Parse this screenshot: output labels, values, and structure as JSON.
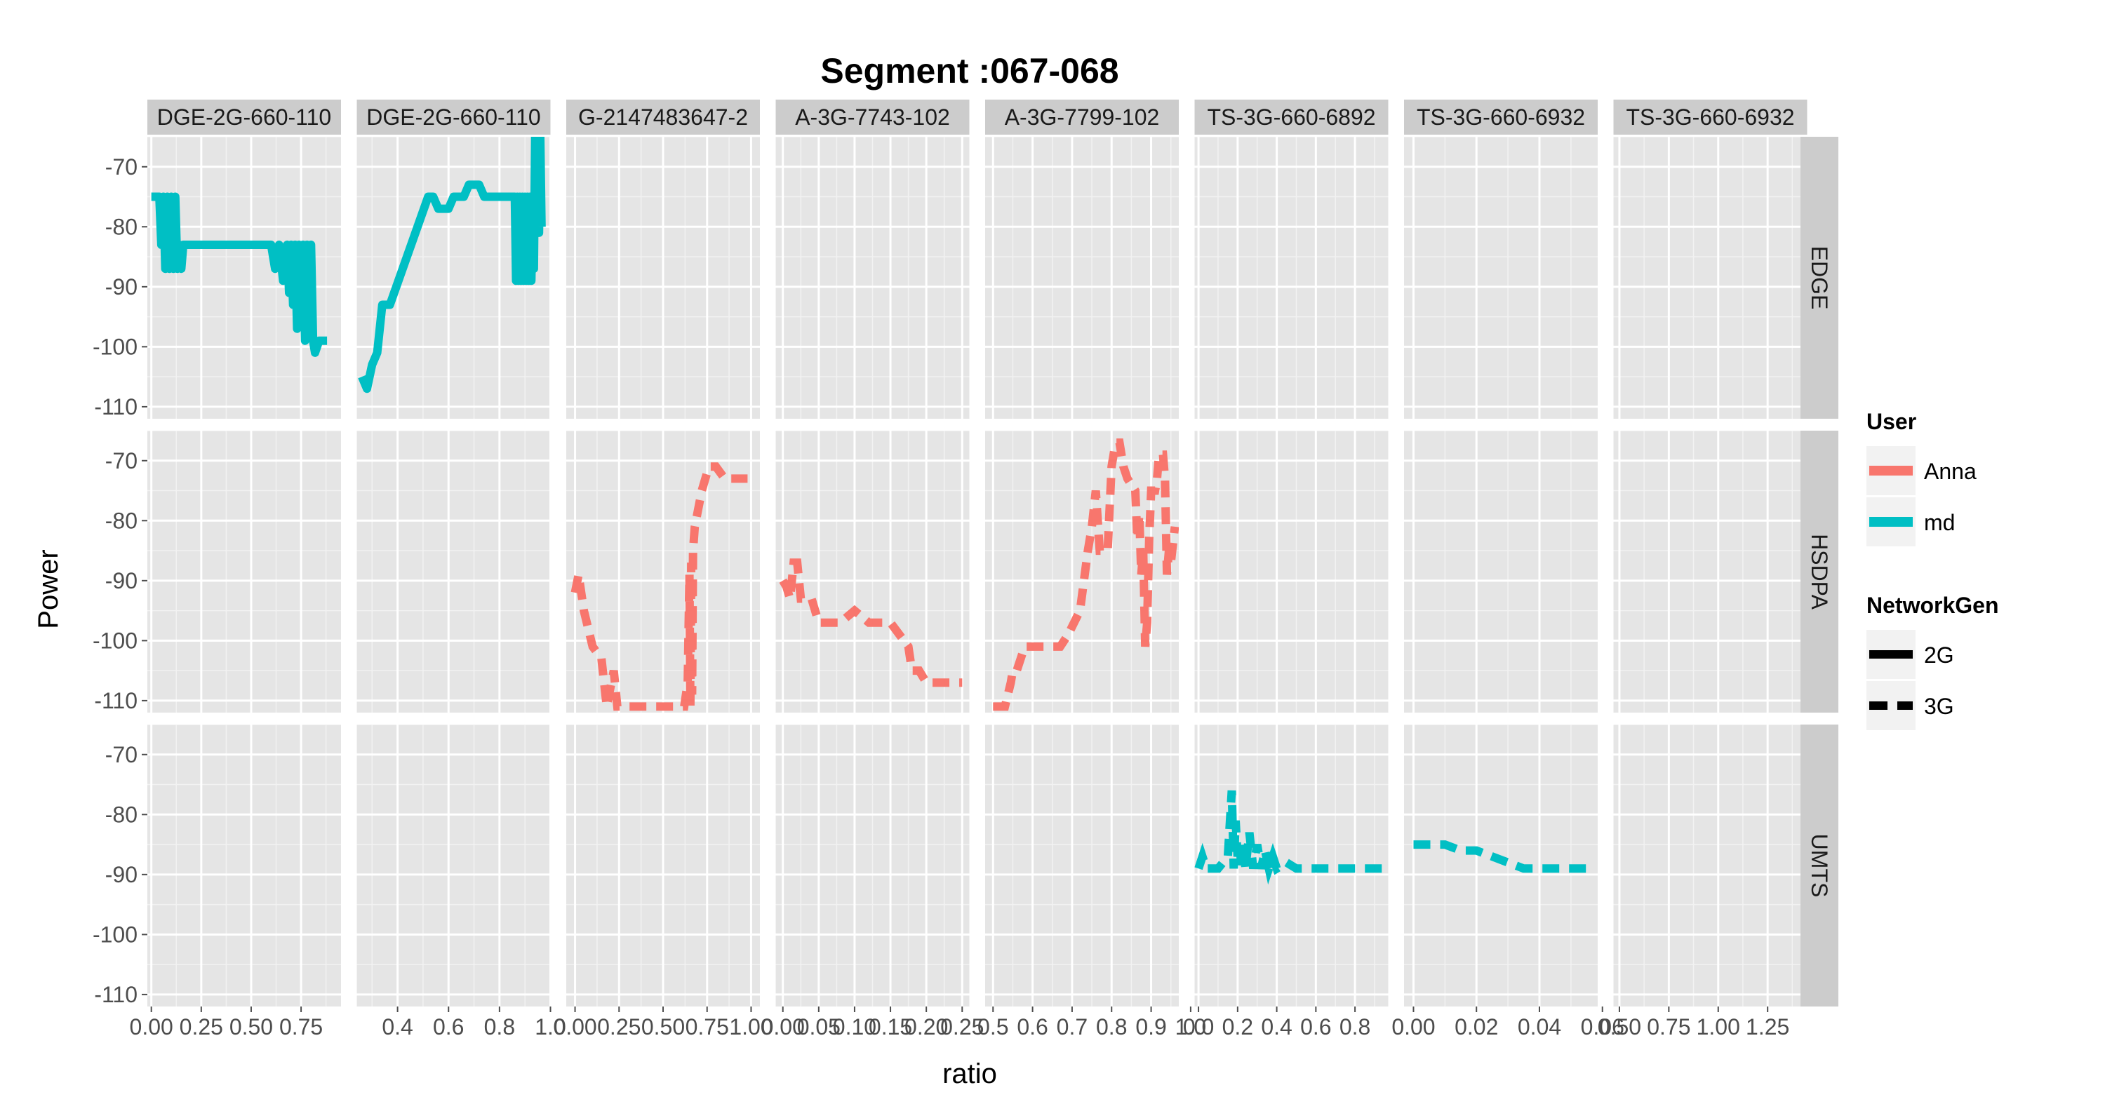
{
  "chart_data": {
    "type": "line",
    "title": "Segment :067-068",
    "xlabel": "ratio",
    "ylabel": "Power",
    "grid": true,
    "legend_placement": "right",
    "colors": {
      "Anna": "#F8766D",
      "md": "#00BFC4"
    },
    "linetypes": {
      "2G": "solid",
      "3G": "dashed"
    },
    "legend": {
      "user_title": "User",
      "user_items": [
        "Anna",
        "md"
      ],
      "gen_title": "NetworkGen",
      "gen_items": [
        "2G",
        "3G"
      ]
    },
    "rows": [
      "EDGE",
      "HSDPA",
      "UMTS"
    ],
    "ylim": [
      -112,
      -65
    ],
    "yticks": [
      -70,
      -80,
      -90,
      -100,
      -110
    ],
    "columns": [
      {
        "label": "DGE-2G-660-110",
        "xlim": [
          -0.02,
          0.95
        ],
        "xticks": [
          0.0,
          0.25,
          0.5,
          0.75
        ],
        "xtick_labels": [
          "0.00",
          "0.25",
          "0.50",
          "0.75"
        ]
      },
      {
        "label": "DGE-2G-660-110",
        "xlim": [
          0.24,
          1.0
        ],
        "xticks": [
          0.4,
          0.6,
          0.8,
          1.0
        ],
        "xtick_labels": [
          "0.4",
          "0.6",
          "0.8",
          "1.0"
        ]
      },
      {
        "label": "G-2147483647-2",
        "xlim": [
          -0.05,
          1.05
        ],
        "xticks": [
          0.0,
          0.25,
          0.5,
          0.75,
          1.0
        ],
        "xtick_labels": [
          "0.00",
          "0.25",
          "0.50",
          "0.75",
          "1.00"
        ]
      },
      {
        "label": "A-3G-7743-102",
        "xlim": [
          -0.01,
          0.26
        ],
        "xticks": [
          0.0,
          0.05,
          0.1,
          0.15,
          0.2,
          0.25
        ],
        "xtick_labels": [
          "0.00",
          "0.05",
          "0.10",
          "0.15",
          "0.20",
          "0.25"
        ]
      },
      {
        "label": "A-3G-7799-102",
        "xlim": [
          0.48,
          0.97
        ],
        "xticks": [
          0.5,
          0.6,
          0.7,
          0.8,
          0.9,
          1.0
        ],
        "xtick_labels": [
          "0.5",
          "0.6",
          "0.7",
          "0.8",
          "0.9",
          "1.0"
        ]
      },
      {
        "label": "TS-3G-660-6892",
        "xlim": [
          -0.02,
          0.97
        ],
        "xticks": [
          0.0,
          0.2,
          0.4,
          0.6,
          0.8
        ],
        "xtick_labels": [
          "0.0",
          "0.2",
          "0.4",
          "0.6",
          "0.8"
        ]
      },
      {
        "label": "TS-3G-660-6932",
        "xlim": [
          -0.003,
          0.0585
        ],
        "xticks": [
          0.0,
          0.02,
          0.04,
          0.06
        ],
        "xtick_labels": [
          "0.00",
          "0.02",
          "0.04",
          "0.06"
        ]
      },
      {
        "label": "TS-3G-660-6932",
        "xlim": [
          0.47,
          1.45
        ],
        "xticks": [
          0.5,
          0.75,
          1.0,
          1.25
        ],
        "xtick_labels": [
          "0.50",
          "0.75",
          "1.00",
          "1.25"
        ]
      }
    ],
    "series": [
      {
        "user": "md",
        "gen": "2G",
        "row": 0,
        "col": 0,
        "points": [
          [
            0.0,
            -75
          ],
          [
            0.04,
            -75
          ],
          [
            0.05,
            -83
          ],
          [
            0.06,
            -75
          ],
          [
            0.07,
            -87
          ],
          [
            0.08,
            -75
          ],
          [
            0.09,
            -87
          ],
          [
            0.1,
            -75
          ],
          [
            0.11,
            -87
          ],
          [
            0.12,
            -75
          ],
          [
            0.13,
            -87
          ],
          [
            0.14,
            -83
          ],
          [
            0.15,
            -87
          ],
          [
            0.16,
            -83
          ],
          [
            0.6,
            -83
          ],
          [
            0.62,
            -87
          ],
          [
            0.64,
            -83
          ],
          [
            0.66,
            -89
          ],
          [
            0.68,
            -83
          ],
          [
            0.69,
            -91
          ],
          [
            0.7,
            -83
          ],
          [
            0.71,
            -93
          ],
          [
            0.72,
            -83
          ],
          [
            0.73,
            -97
          ],
          [
            0.74,
            -83
          ],
          [
            0.75,
            -93
          ],
          [
            0.76,
            -83
          ],
          [
            0.77,
            -99
          ],
          [
            0.78,
            -83
          ],
          [
            0.79,
            -97
          ],
          [
            0.8,
            -83
          ],
          [
            0.81,
            -99
          ],
          [
            0.82,
            -101
          ],
          [
            0.84,
            -99
          ],
          [
            0.88,
            -99
          ]
        ]
      },
      {
        "user": "md",
        "gen": "2G",
        "row": 0,
        "col": 1,
        "points": [
          [
            0.26,
            -105
          ],
          [
            0.28,
            -107
          ],
          [
            0.3,
            -103
          ],
          [
            0.32,
            -101
          ],
          [
            0.34,
            -93
          ],
          [
            0.37,
            -93
          ],
          [
            0.52,
            -75
          ],
          [
            0.54,
            -75
          ],
          [
            0.56,
            -77
          ],
          [
            0.6,
            -77
          ],
          [
            0.62,
            -75
          ],
          [
            0.66,
            -75
          ],
          [
            0.68,
            -73
          ],
          [
            0.72,
            -73
          ],
          [
            0.74,
            -75
          ],
          [
            0.86,
            -75
          ],
          [
            0.865,
            -89
          ],
          [
            0.87,
            -75
          ],
          [
            0.875,
            -89
          ],
          [
            0.88,
            -75
          ],
          [
            0.885,
            -89
          ],
          [
            0.89,
            -75
          ],
          [
            0.895,
            -89
          ],
          [
            0.9,
            -75
          ],
          [
            0.905,
            -89
          ],
          [
            0.91,
            -75
          ],
          [
            0.915,
            -89
          ],
          [
            0.92,
            -75
          ],
          [
            0.925,
            -89
          ],
          [
            0.93,
            -75
          ],
          [
            0.935,
            -87
          ],
          [
            0.94,
            -65
          ],
          [
            0.945,
            -81
          ],
          [
            0.95,
            -65
          ],
          [
            0.955,
            -81
          ],
          [
            0.96,
            -65
          ],
          [
            0.965,
            -80
          ]
        ]
      },
      {
        "user": "Anna",
        "gen": "3G",
        "row": 1,
        "col": 2,
        "points": [
          [
            0.0,
            -92
          ],
          [
            0.02,
            -89
          ],
          [
            0.05,
            -95
          ],
          [
            0.1,
            -101
          ],
          [
            0.15,
            -103
          ],
          [
            0.18,
            -111
          ],
          [
            0.22,
            -105
          ],
          [
            0.24,
            -111
          ],
          [
            0.3,
            -111
          ],
          [
            0.5,
            -111
          ],
          [
            0.62,
            -111
          ],
          [
            0.64,
            -107
          ],
          [
            0.65,
            -89
          ],
          [
            0.655,
            -111
          ],
          [
            0.66,
            -87
          ],
          [
            0.665,
            -109
          ],
          [
            0.67,
            -85
          ],
          [
            0.68,
            -81
          ],
          [
            0.72,
            -75
          ],
          [
            0.76,
            -71
          ],
          [
            0.8,
            -71
          ],
          [
            0.85,
            -73
          ],
          [
            0.98,
            -73
          ]
        ]
      },
      {
        "user": "Anna",
        "gen": "3G",
        "row": 1,
        "col": 3,
        "points": [
          [
            0.0,
            -90
          ],
          [
            0.005,
            -91
          ],
          [
            0.01,
            -93
          ],
          [
            0.015,
            -87
          ],
          [
            0.02,
            -87
          ],
          [
            0.025,
            -93
          ],
          [
            0.04,
            -93
          ],
          [
            0.05,
            -97
          ],
          [
            0.08,
            -97
          ],
          [
            0.09,
            -96
          ],
          [
            0.1,
            -95
          ],
          [
            0.12,
            -97
          ],
          [
            0.15,
            -97
          ],
          [
            0.175,
            -101
          ],
          [
            0.18,
            -105
          ],
          [
            0.19,
            -105
          ],
          [
            0.2,
            -107
          ],
          [
            0.25,
            -107
          ]
        ]
      },
      {
        "user": "Anna",
        "gen": "3G",
        "row": 1,
        "col": 4,
        "points": [
          [
            0.5,
            -111
          ],
          [
            0.53,
            -111
          ],
          [
            0.545,
            -107
          ],
          [
            0.55,
            -105
          ],
          [
            0.56,
            -105
          ],
          [
            0.58,
            -101
          ],
          [
            0.65,
            -101
          ],
          [
            0.67,
            -101
          ],
          [
            0.69,
            -99
          ],
          [
            0.72,
            -95
          ],
          [
            0.74,
            -85
          ],
          [
            0.75,
            -81
          ],
          [
            0.76,
            -75
          ],
          [
            0.77,
            -85
          ],
          [
            0.79,
            -85
          ],
          [
            0.8,
            -71
          ],
          [
            0.81,
            -67
          ],
          [
            0.82,
            -67
          ],
          [
            0.83,
            -71
          ],
          [
            0.84,
            -73
          ],
          [
            0.86,
            -75
          ],
          [
            0.865,
            -83
          ],
          [
            0.87,
            -79
          ],
          [
            0.875,
            -89
          ],
          [
            0.88,
            -85
          ],
          [
            0.885,
            -101
          ],
          [
            0.89,
            -97
          ],
          [
            0.895,
            -83
          ],
          [
            0.9,
            -75
          ],
          [
            0.91,
            -75
          ],
          [
            0.915,
            -73
          ],
          [
            0.92,
            -69
          ],
          [
            0.93,
            -69
          ],
          [
            0.935,
            -73
          ],
          [
            0.94,
            -89
          ],
          [
            0.945,
            -85
          ],
          [
            0.95,
            -87
          ],
          [
            0.96,
            -81
          ]
        ]
      },
      {
        "user": "md",
        "gen": "3G",
        "row": 2,
        "col": 5,
        "points": [
          [
            0.0,
            -89
          ],
          [
            0.02,
            -87
          ],
          [
            0.04,
            -89
          ],
          [
            0.1,
            -89
          ],
          [
            0.15,
            -87
          ],
          [
            0.17,
            -76
          ],
          [
            0.18,
            -89
          ],
          [
            0.19,
            -81
          ],
          [
            0.2,
            -87
          ],
          [
            0.21,
            -85
          ],
          [
            0.22,
            -89
          ],
          [
            0.23,
            -85
          ],
          [
            0.24,
            -89
          ],
          [
            0.26,
            -83
          ],
          [
            0.28,
            -89
          ],
          [
            0.3,
            -85
          ],
          [
            0.32,
            -89
          ],
          [
            0.34,
            -86
          ],
          [
            0.36,
            -89
          ],
          [
            0.38,
            -87
          ],
          [
            0.4,
            -89
          ],
          [
            0.45,
            -88
          ],
          [
            0.5,
            -89
          ],
          [
            0.7,
            -89
          ],
          [
            0.94,
            -89
          ]
        ]
      },
      {
        "user": "md",
        "gen": "3G",
        "row": 2,
        "col": 6,
        "points": [
          [
            0.0,
            -85
          ],
          [
            0.01,
            -85
          ],
          [
            0.015,
            -86
          ],
          [
            0.02,
            -86
          ],
          [
            0.03,
            -88
          ],
          [
            0.035,
            -89
          ],
          [
            0.045,
            -89
          ],
          [
            0.055,
            -89
          ]
        ]
      }
    ]
  }
}
